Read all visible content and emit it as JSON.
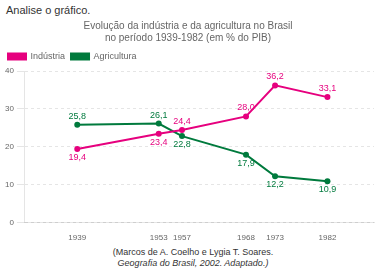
{
  "chart_data": {
    "type": "line",
    "header": "Analise o gráfico.",
    "title": [
      "Evolução da indústria e da agricultura no Brasil",
      "no período 1939-1982 (em % do PIB)"
    ],
    "footnote": [
      "(Marcos de A. Coelho e Lygia T. Soares.",
      "Geografia do Brasil, 2002. Adaptado.)"
    ],
    "x": [
      1939,
      1953,
      1957,
      1968,
      1973,
      1982
    ],
    "series": [
      {
        "name": "Indústria",
        "color": "#e6007e",
        "values": [
          19.4,
          23.4,
          24.4,
          28.0,
          36.2,
          33.1
        ],
        "value_labels": [
          "19,4",
          "23,4",
          "24,4",
          "28,0",
          "36,2",
          "33,1"
        ]
      },
      {
        "name": "Agricultura",
        "color": "#007a3d",
        "values": [
          25.8,
          26.1,
          22.8,
          17.9,
          12.2,
          10.9
        ],
        "value_labels": [
          "25,8",
          "26,1",
          "22,8",
          "17,9",
          "12,2",
          "10,9"
        ]
      }
    ],
    "xlim": [
      1930,
      1990
    ],
    "xticks": [
      1939,
      1953,
      1957,
      1968,
      1973,
      1982
    ],
    "ylim": [
      0,
      40
    ],
    "yticks": [
      0,
      10,
      20,
      30,
      40
    ],
    "grid": "y",
    "legend": "upper left",
    "marker": "circle",
    "data_labels": true
  }
}
